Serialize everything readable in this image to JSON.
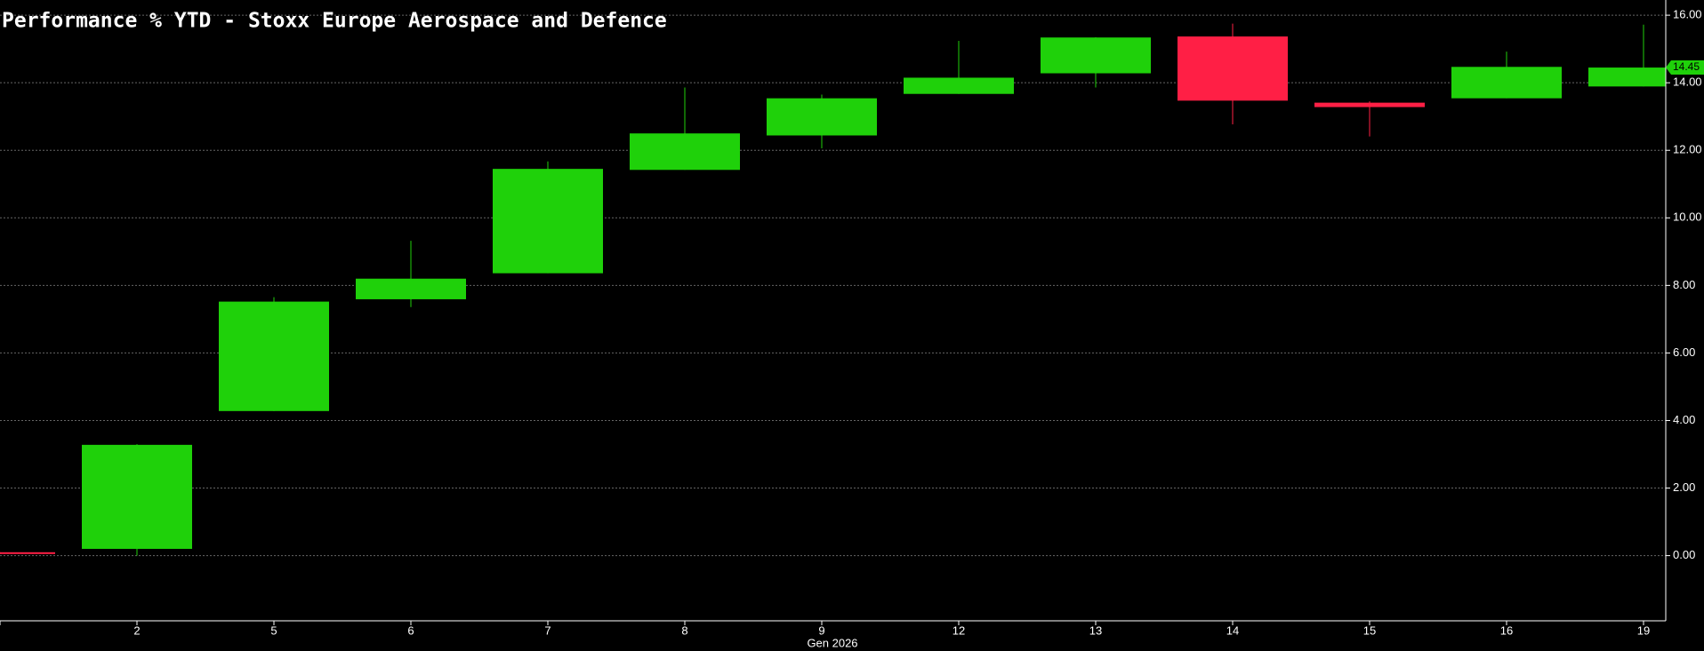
{
  "chart_data": {
    "type": "candlestick",
    "title": "Performance % YTD - Stoxx Europe Aerospace and Defence",
    "x_label": "Gen 2026",
    "categories": [
      null,
      "2",
      "5",
      "6",
      "7",
      "8",
      "9",
      "12",
      "13",
      "14",
      "15",
      "16",
      "19"
    ],
    "open": [
      0.1,
      0.2,
      4.28,
      7.59,
      8.36,
      11.42,
      12.44,
      13.67,
      14.28,
      15.37,
      13.41,
      13.54,
      13.89
    ],
    "high": [
      0.1,
      3.3,
      7.65,
      9.32,
      11.67,
      13.86,
      13.65,
      15.24,
      15.35,
      15.75,
      13.45,
      14.92,
      15.72
    ],
    "low": [
      0.05,
      0.0,
      4.28,
      7.36,
      8.36,
      11.42,
      12.06,
      13.67,
      13.86,
      12.77,
      12.41,
      13.54,
      13.89
    ],
    "close": [
      0.05,
      3.28,
      7.52,
      8.2,
      11.45,
      12.5,
      13.54,
      14.15,
      15.34,
      13.47,
      13.28,
      14.47,
      14.45
    ],
    "up_color": "#1fd10a",
    "down_color": "#ff1f45",
    "last_value_label": {
      "value": 14.45,
      "label": "14.45"
    },
    "ylim": [
      -1.93,
      16.45
    ],
    "yticks": [
      {
        "value": 0,
        "label": "0.00"
      },
      {
        "value": 2,
        "label": "2.00"
      },
      {
        "value": 4,
        "label": "4.00"
      },
      {
        "value": 6,
        "label": "6.00"
      },
      {
        "value": 8,
        "label": "8.00"
      },
      {
        "value": 10,
        "label": "10.00"
      },
      {
        "value": 12,
        "label": "12.00"
      },
      {
        "value": 14,
        "label": "14.00"
      },
      {
        "value": 16,
        "label": "16.00"
      }
    ],
    "grid": true
  }
}
